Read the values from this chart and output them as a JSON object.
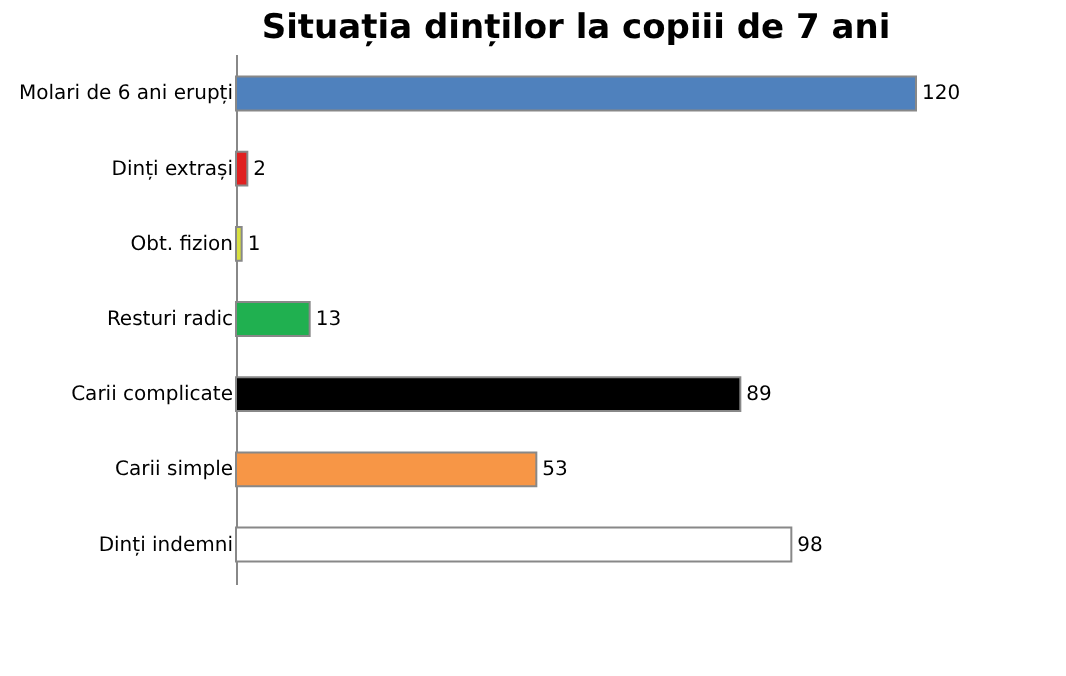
{
  "chart_data": {
    "type": "bar",
    "orientation": "horizontal",
    "title": "Situația dinților la copiii de 7 ani",
    "categories": [
      "Molari de 6  ani erupți",
      "Dinți extrași",
      "Obt. fizion",
      "Resturi radic",
      "Carii complicate",
      "Carii simple",
      "Dinți indemni"
    ],
    "values": [
      120,
      2,
      1,
      13,
      89,
      53,
      98
    ],
    "colors": [
      "#4f81bd",
      "#e02020",
      "#d8e040",
      "#20b050",
      "#000000",
      "#f79646",
      "#ffffff"
    ],
    "data_labels": true
  }
}
